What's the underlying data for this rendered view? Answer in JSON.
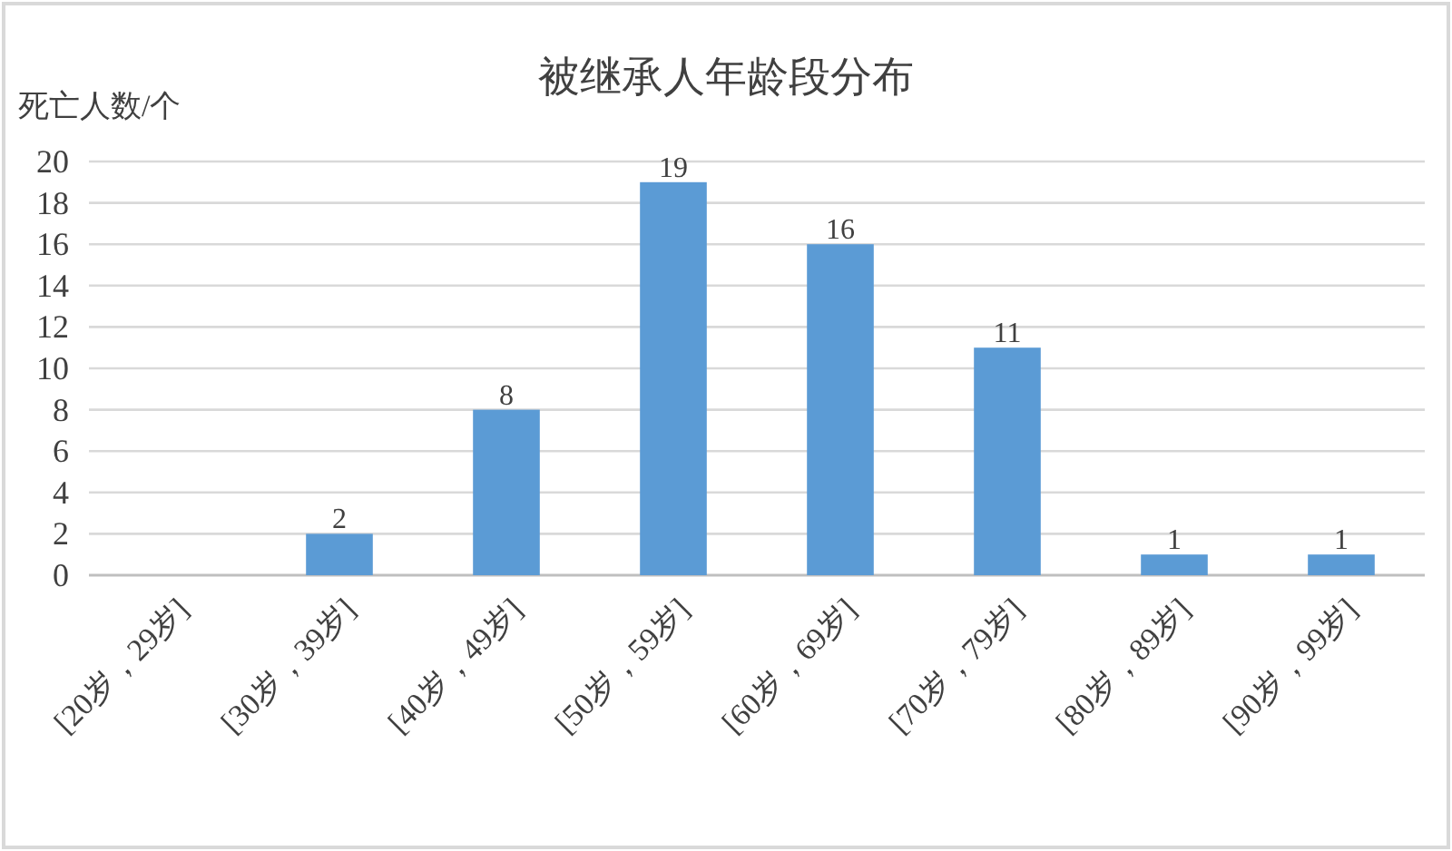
{
  "chart_data": {
    "type": "bar",
    "title": "被继承人年龄段分布",
    "ylabel": "死亡人数/个",
    "categories": [
      "[20岁，29岁]",
      "[30岁，39岁]",
      "[40岁，49岁]",
      "[50岁，59岁]",
      "[60岁，69岁]",
      "[70岁，79岁]",
      "[80岁，89岁]",
      "[90岁，99岁]"
    ],
    "series": [
      {
        "color": "#5b9bd5",
        "values": [
          null,
          2,
          8,
          19,
          16,
          11,
          1,
          1
        ]
      }
    ],
    "ylim": [
      0,
      20
    ],
    "yticks": [
      0,
      2,
      4,
      6,
      8,
      10,
      12,
      14,
      16,
      18,
      20
    ],
    "grid": "y",
    "data_labels": true
  }
}
